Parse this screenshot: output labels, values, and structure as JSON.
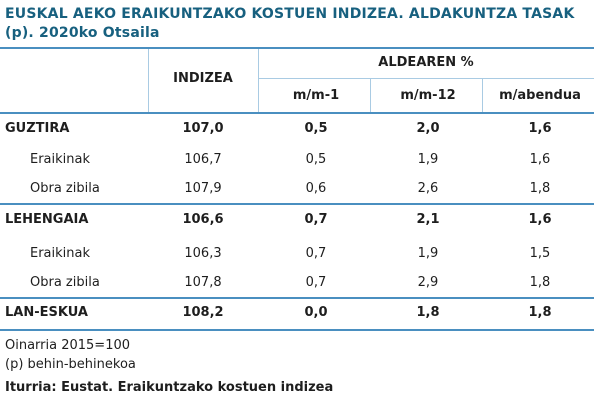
{
  "title": "EUSKAL AEKO  ERAIKUNTZAKO KOSTUEN INDIZEA. ALDAKUNTZA TASAK (p). 2020ko Otsaila",
  "table": {
    "header": {
      "index": "INDIZEA",
      "group": "ALDEAREN %",
      "columns": [
        "m/m-1",
        "m/m-12",
        "m/abendua"
      ]
    },
    "rows": [
      {
        "label": "GUZTIRA",
        "bold": true,
        "cells": [
          "107,0",
          "0,5",
          "2,0",
          "1,6"
        ]
      },
      {
        "label": "Eraikinak",
        "bold": false,
        "cells": [
          "106,7",
          "0,5",
          "1,9",
          "1,6"
        ]
      },
      {
        "label": "Obra zibila",
        "bold": false,
        "cells": [
          "107,9",
          "0,6",
          "2,6",
          "1,8"
        ]
      },
      {
        "label": "LEHENGAIA",
        "bold": true,
        "cells": [
          "106,6",
          "0,7",
          "2,1",
          "1,6"
        ]
      },
      {
        "label": "Eraikinak",
        "bold": false,
        "cells": [
          "106,3",
          "0,7",
          "1,9",
          "1,5"
        ]
      },
      {
        "label": "Obra zibila",
        "bold": false,
        "cells": [
          "107,8",
          "0,7",
          "2,9",
          "1,8"
        ]
      },
      {
        "label": "LAN-ESKUA",
        "bold": true,
        "cells": [
          "108,2",
          "0,0",
          "1,8",
          "1,8"
        ]
      }
    ]
  },
  "notes": [
    "Oinarria 2015=100",
    "(p) behin-behinekoa"
  ],
  "source": "Iturria: Eustat. Eraikuntzako kostuen indizea"
}
